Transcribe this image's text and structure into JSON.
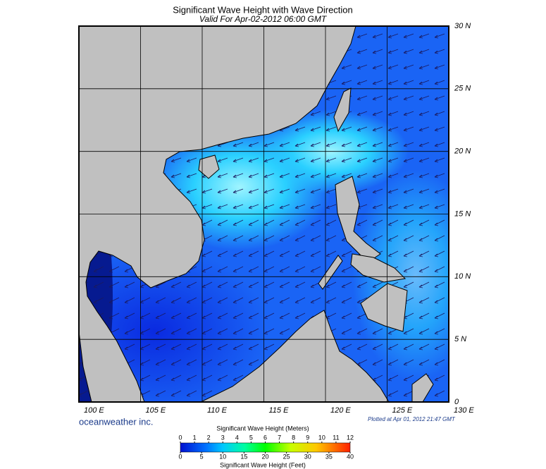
{
  "header": {
    "title": "Significant Wave Height with Wave Direction",
    "subtitle": "Valid For Apr-02-2012 06:00 GMT"
  },
  "map": {
    "lon_ticks": [
      {
        "value": 100,
        "label": "100 E"
      },
      {
        "value": 105,
        "label": "105 E"
      },
      {
        "value": 110,
        "label": "110 E"
      },
      {
        "value": 115,
        "label": "115 E"
      },
      {
        "value": 120,
        "label": "120 E"
      },
      {
        "value": 125,
        "label": "125 E"
      },
      {
        "value": 130,
        "label": "130 E"
      }
    ],
    "lat_ticks": [
      {
        "value": 30,
        "label": "30 N"
      },
      {
        "value": 25,
        "label": "25 N"
      },
      {
        "value": 20,
        "label": "20 N"
      },
      {
        "value": 15,
        "label": "15 N"
      },
      {
        "value": 10,
        "label": "10 N"
      },
      {
        "value": 5,
        "label": "5 N"
      },
      0
    ]
  },
  "footer": {
    "credit": "oceanweather inc.",
    "plotted": "Plotted at Apr 01, 2012 21:47 GMT"
  },
  "legend": {
    "meters_title": "Significant Wave Height (Meters)",
    "meters_ticks": [
      0,
      1,
      2,
      3,
      4,
      5,
      6,
      7,
      8,
      9,
      10,
      11,
      12
    ],
    "feet_title": "Significant Wave Height (Feet)",
    "feet_ticks": [
      0,
      5,
      10,
      15,
      20,
      25,
      30,
      35,
      40
    ]
  }
}
